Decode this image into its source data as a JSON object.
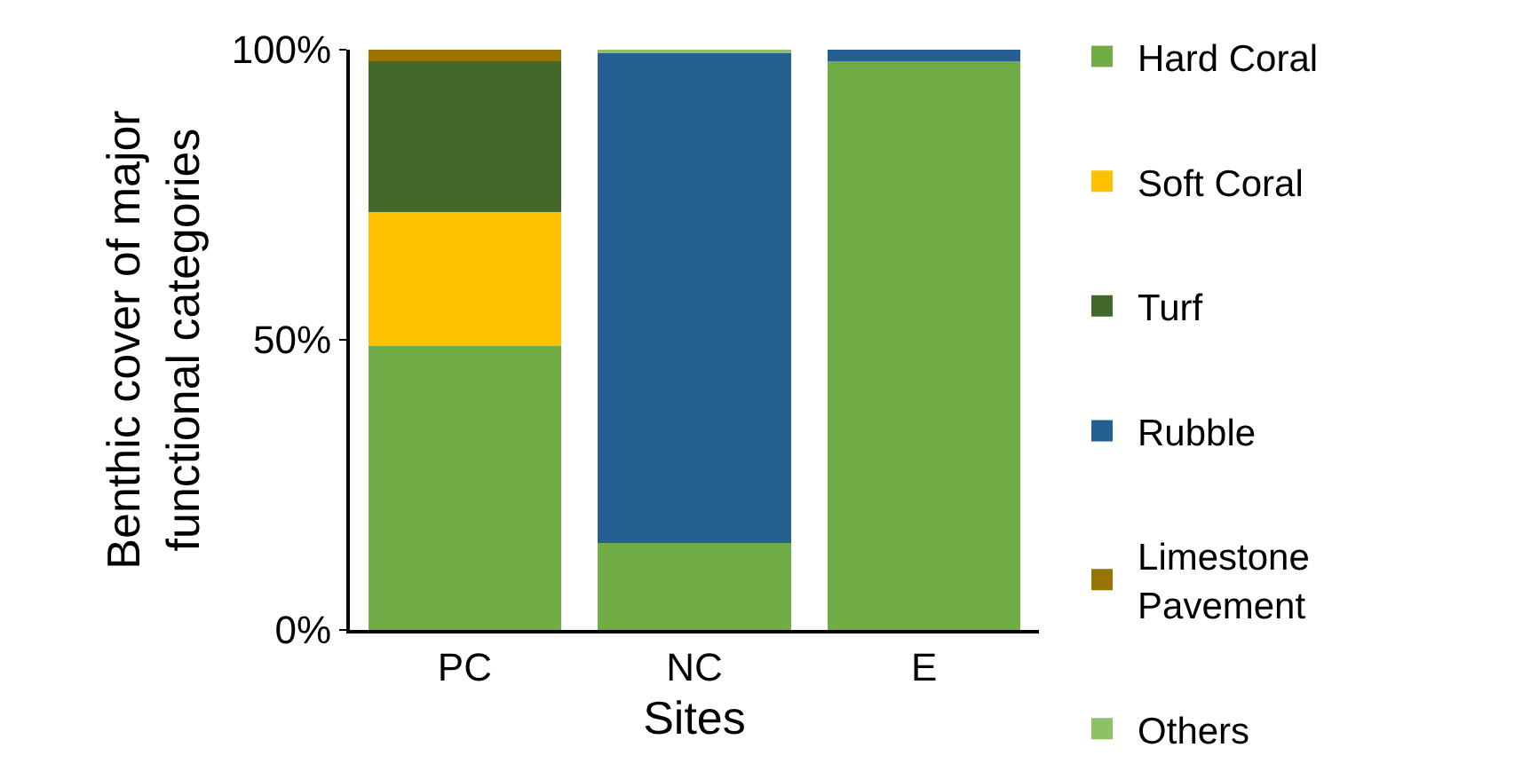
{
  "chart_data": {
    "type": "bar",
    "stacked": true,
    "xlabel": "Sites",
    "ylabel": "Benthic cover of major functional categories",
    "categories": [
      "PC",
      "NC",
      "E"
    ],
    "series": [
      {
        "name": "Hard Coral",
        "color": "#70ad47",
        "values": [
          49,
          15,
          98
        ]
      },
      {
        "name": "Soft Coral",
        "color": "#ffc000",
        "values": [
          23,
          0,
          0
        ]
      },
      {
        "name": "Turf",
        "color": "#43682b",
        "values": [
          26,
          0,
          0
        ]
      },
      {
        "name": "Rubble",
        "color": "#255e91",
        "values": [
          0,
          84.5,
          2
        ]
      },
      {
        "name": "Limestone Pavement",
        "color": "#997300",
        "values": [
          2,
          0,
          0
        ]
      },
      {
        "name": "Others",
        "color": "#8cc168",
        "values": [
          0,
          0.5,
          0
        ]
      }
    ],
    "ylim": [
      0,
      100
    ],
    "yticks": [
      {
        "value": 0,
        "label": "0%"
      },
      {
        "value": 50,
        "label": "50%"
      },
      {
        "value": 100,
        "label": "100%"
      }
    ],
    "legend": "right"
  }
}
